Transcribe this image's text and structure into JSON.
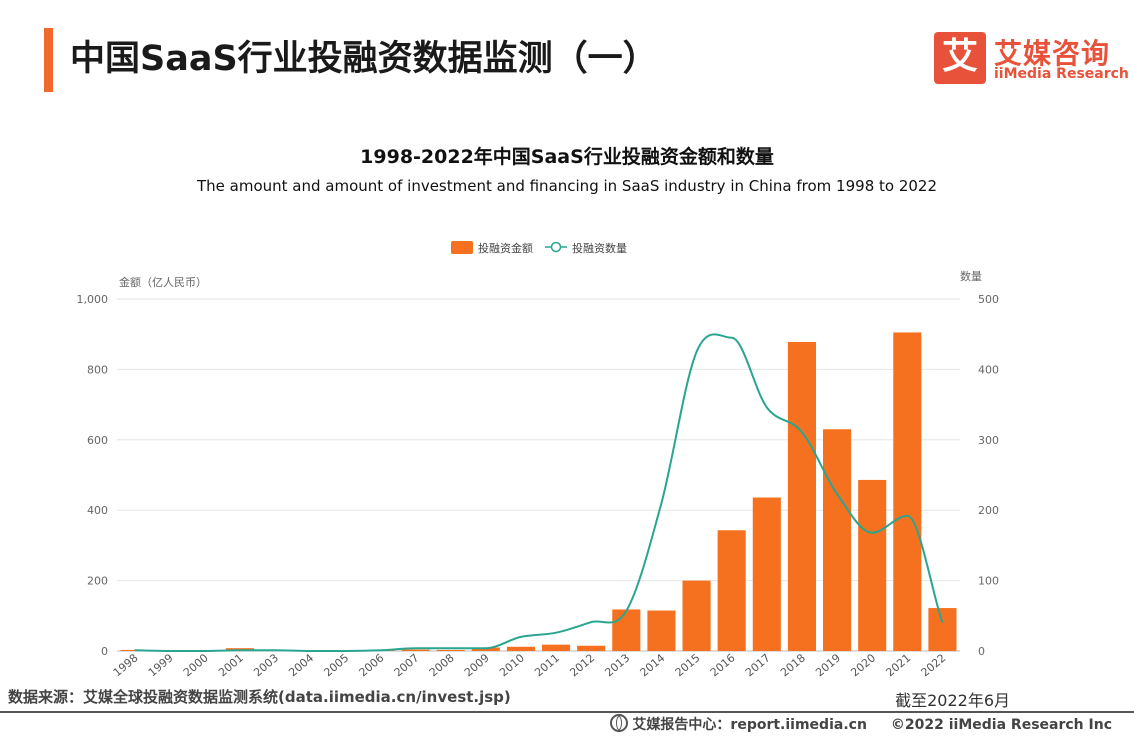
{
  "header": {
    "title": "中国SaaS行业投融资数据监测（一）",
    "logo_mark": "艾",
    "logo_cn": "艾媒咨询",
    "logo_en": "iiMedia Research"
  },
  "chart_data": {
    "type": "bar",
    "title": "1998-2022年中国SaaS行业投融资金额和数量",
    "subtitle": "The amount and amount of investment and financing in SaaS industry in China from 1998 to 2022",
    "categories": [
      "1998",
      "1999",
      "2000",
      "2001",
      "2003",
      "2004",
      "2005",
      "2006",
      "2007",
      "2008",
      "2009",
      "2010",
      "2011",
      "2012",
      "2013",
      "2014",
      "2015",
      "2016",
      "2017",
      "2018",
      "2019",
      "2020",
      "2021",
      "2022"
    ],
    "series": [
      {
        "name": "投融资金额",
        "type": "bar",
        "axis": "left",
        "color": "#f6711f",
        "values": [
          3,
          1,
          2,
          8,
          2,
          1,
          1,
          2,
          4,
          3,
          10,
          12,
          18,
          15,
          118,
          115,
          200,
          343,
          436,
          878,
          630,
          486,
          905,
          122
        ]
      },
      {
        "name": "投融资数量",
        "type": "line",
        "axis": "right",
        "color": "#2aa58f",
        "values": [
          1,
          0,
          0,
          1,
          1,
          0,
          0,
          1,
          4,
          4,
          4,
          20,
          26,
          41,
          57,
          210,
          425,
          445,
          346,
          311,
          223,
          168,
          192,
          40
        ]
      }
    ],
    "ylabel_left": "金额（亿人民币）",
    "ylabel_right": "数量",
    "ylim_left": [
      0,
      1000
    ],
    "ylim_right": [
      0,
      500
    ],
    "yticks_left": [
      "0",
      "200",
      "400",
      "600",
      "800",
      "1,000"
    ],
    "yticks_right": [
      "0",
      "100",
      "200",
      "300",
      "400",
      "500"
    ],
    "legend_position": "top-center"
  },
  "footer": {
    "source": "数据来源：艾媒全球投融资数据监测系统(data.iimedia.cn/invest.jsp)",
    "date": "截至2022年6月",
    "report_center": "艾媒报告中心：report.iimedia.cn",
    "copyright": "©2022 iiMedia Research Inc"
  }
}
